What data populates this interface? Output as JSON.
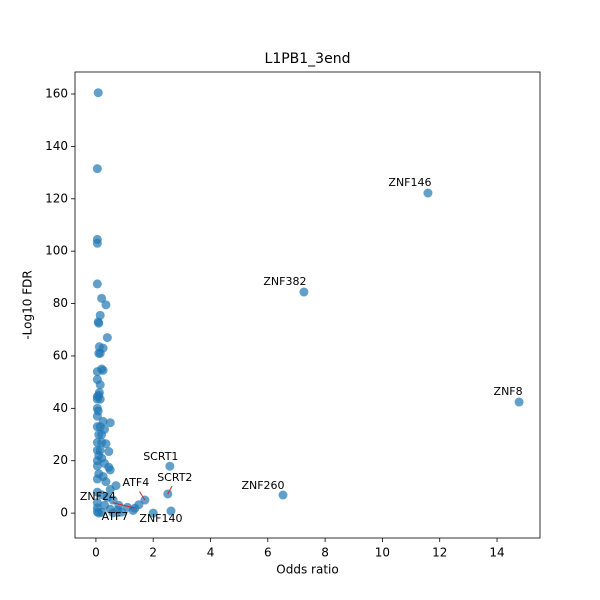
{
  "chart_data": {
    "type": "scatter",
    "title": "L1PB1_3end",
    "x_label": "Odds ratio",
    "y_label": "-Log10 FDR",
    "color": "#1f77b4",
    "xlim": [
      -0.73,
      15.5
    ],
    "ylim": [
      -9.5,
      168.4
    ],
    "xticks": [
      0,
      2,
      4,
      6,
      8,
      10,
      12,
      14
    ],
    "yticks": [
      0,
      20,
      40,
      60,
      80,
      100,
      120,
      140,
      160
    ],
    "x": [
      11.59,
      7.26,
      14.77,
      6.53,
      2.58,
      2.51,
      2.62,
      2.0,
      1.71,
      1.36,
      0.77,
      0.08,
      0.05,
      0.05,
      0.05,
      0.05,
      0.2,
      0.35,
      0.15,
      0.08,
      0.1,
      0.4,
      0.12,
      0.25,
      0.1,
      0.15,
      0.05,
      0.2,
      0.25,
      0.05,
      0.15,
      0.12,
      0.1,
      0.05,
      0.05,
      0.15,
      0.05,
      0.08,
      0.05,
      0.5,
      0.25,
      0.05,
      0.15,
      0.3,
      0.1,
      0.2,
      0.05,
      0.2,
      0.35,
      0.05,
      0.15,
      0.45,
      0.1,
      0.05,
      0.2,
      0.05,
      0.3,
      0.45,
      0.5,
      0.1,
      0.05,
      0.25,
      0.35,
      0.7,
      0.5,
      0.05,
      0.2,
      0.4,
      0.6,
      0.05,
      0.3,
      0.8,
      1.1,
      0.05,
      0.5,
      1.3,
      0.05,
      0.2,
      0.9,
      0.1,
      0.6,
      1.5
    ],
    "y": [
      122.2,
      84.4,
      42.4,
      6.9,
      17.9,
      7.3,
      0.8,
      0,
      5.0,
      1.9,
      1.1,
      160.5,
      131.5,
      104.5,
      103,
      87.5,
      82,
      79.5,
      75.5,
      73,
      72.5,
      67,
      63.5,
      63,
      61,
      61,
      54,
      55,
      54.5,
      51,
      49,
      46,
      45,
      44.5,
      43.5,
      43.5,
      40,
      39,
      37,
      34.5,
      35,
      33,
      33,
      32,
      30,
      30,
      27,
      27,
      26.5,
      24,
      24,
      23.5,
      22,
      20,
      21,
      18,
      19,
      17.5,
      16.5,
      15,
      13,
      14,
      12,
      10.5,
      9,
      8,
      7,
      6,
      5,
      4,
      3,
      3,
      2.2,
      2,
      1.5,
      1,
      0.5,
      0.3,
      0.4,
      0,
      0.1,
      3.2
    ],
    "annotations": [
      {
        "text": "ZNF146",
        "point": 0
      },
      {
        "text": "ZNF382",
        "point": 1
      },
      {
        "text": "ZNF8",
        "point": 2
      },
      {
        "text": "ZNF260",
        "point": 3
      },
      {
        "text": "SCRT1",
        "point": 4
      },
      {
        "text": "SCRT2",
        "point": 5
      },
      {
        "text": "ZNF140",
        "point": 6
      },
      {
        "text": "ATF4",
        "point": 8
      },
      {
        "text": "ZNF24",
        "point": 9
      },
      {
        "text": "ATF7",
        "point": 10
      }
    ]
  }
}
